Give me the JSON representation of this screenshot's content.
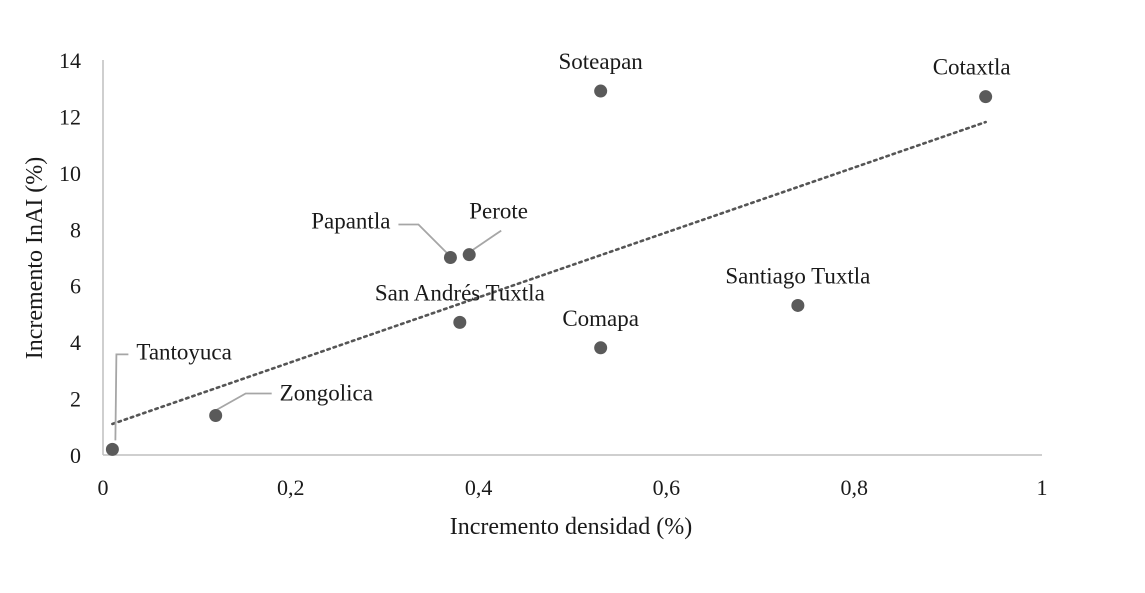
{
  "chart_data": {
    "type": "scatter",
    "xlabel": "Incremento densidad (%)",
    "ylabel": "Incremento InAI (%)",
    "xlim": [
      0,
      1
    ],
    "ylim": [
      0,
      14
    ],
    "xticks": [
      0,
      0.2,
      0.4,
      0.6,
      0.8,
      1
    ],
    "xtick_labels": [
      "0",
      "0,2",
      "0,4",
      "0,6",
      "0,8",
      "1"
    ],
    "yticks": [
      0,
      2,
      4,
      6,
      8,
      10,
      12,
      14
    ],
    "ytick_labels": [
      "0",
      "2",
      "4",
      "6",
      "8",
      "10",
      "12",
      "14"
    ],
    "grid": false,
    "point_color": "#5a5a5a",
    "trendline": {
      "type": "linear",
      "style": "dotted",
      "color": "#555555",
      "x": [
        0.01,
        0.94
      ],
      "y": [
        1.1,
        11.8
      ]
    },
    "points": [
      {
        "label": "Tantoyuca",
        "x": 0.01,
        "y": 0.2
      },
      {
        "label": "Zongolica",
        "x": 0.12,
        "y": 1.4
      },
      {
        "label": "Papantla",
        "x": 0.37,
        "y": 7.0
      },
      {
        "label": "Perote",
        "x": 0.39,
        "y": 7.1
      },
      {
        "label": "San Andrés Tuxtla",
        "x": 0.38,
        "y": 4.7
      },
      {
        "label": "Soteapan",
        "x": 0.53,
        "y": 12.9
      },
      {
        "label": "Comapa",
        "x": 0.53,
        "y": 3.8
      },
      {
        "label": "Santiago Tuxtla",
        "x": 0.74,
        "y": 5.3
      },
      {
        "label": "Cotaxtla",
        "x": 0.94,
        "y": 12.7
      }
    ]
  }
}
